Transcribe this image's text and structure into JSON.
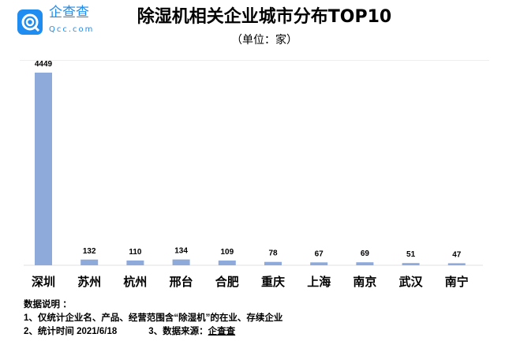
{
  "logo": {
    "name": "企查查",
    "sub": "Qcc.com",
    "color": "#1e8cf0"
  },
  "chart_data": {
    "type": "bar",
    "title": "除湿机相关企业城市分布TOP10",
    "subtitle": "（单位：家）",
    "categories": [
      "深圳",
      "苏州",
      "杭州",
      "邢台",
      "合肥",
      "重庆",
      "上海",
      "南京",
      "武汉",
      "南宁"
    ],
    "values": [
      4449,
      132,
      110,
      134,
      109,
      78,
      67,
      69,
      51,
      47
    ],
    "bar_color": "#8eaadb",
    "grid": false,
    "legend": "none"
  },
  "notes": {
    "heading": "数据说明 ：",
    "line1": "1、仅统计企业名、产品、经营范围含“除湿机”的在业、存续企业",
    "line2": "2、统计时间  2021/6/18",
    "line3_prefix": "3、数据来源：",
    "line3_source": "企查查"
  }
}
